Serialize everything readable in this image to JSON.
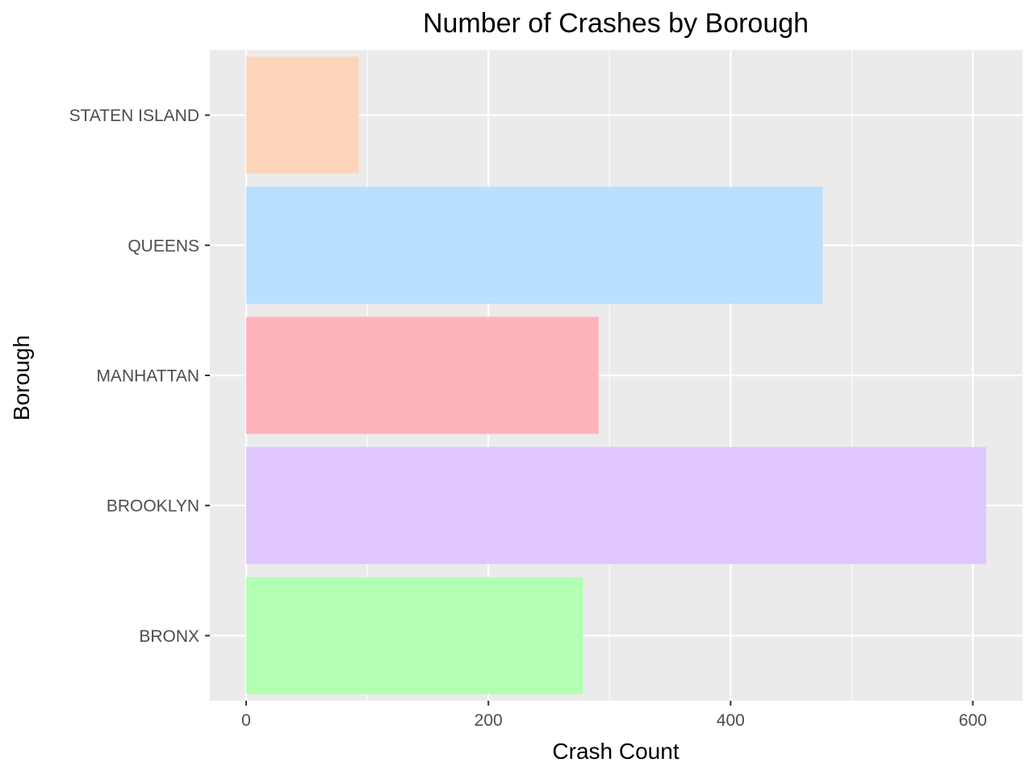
{
  "chart_data": {
    "type": "bar",
    "orientation": "horizontal",
    "title": "Number of Crashes by Borough",
    "xlabel": "Crash Count",
    "ylabel": "Borough",
    "categories": [
      "BRONX",
      "BROOKLYN",
      "MANHATTAN",
      "QUEENS",
      "STATEN ISLAND"
    ],
    "values": [
      278,
      611,
      291,
      476,
      93
    ],
    "colors": [
      "#b3ffb3",
      "#e0c6ff",
      "#ffb3ba",
      "#b9e0ff",
      "#fdd5bb"
    ],
    "xlim": [
      -30,
      641
    ],
    "xticks": [
      0,
      200,
      400,
      600
    ],
    "grid": true,
    "legend": "none",
    "panel_background": "#ebebeb",
    "gridline_color": "#ffffff"
  }
}
